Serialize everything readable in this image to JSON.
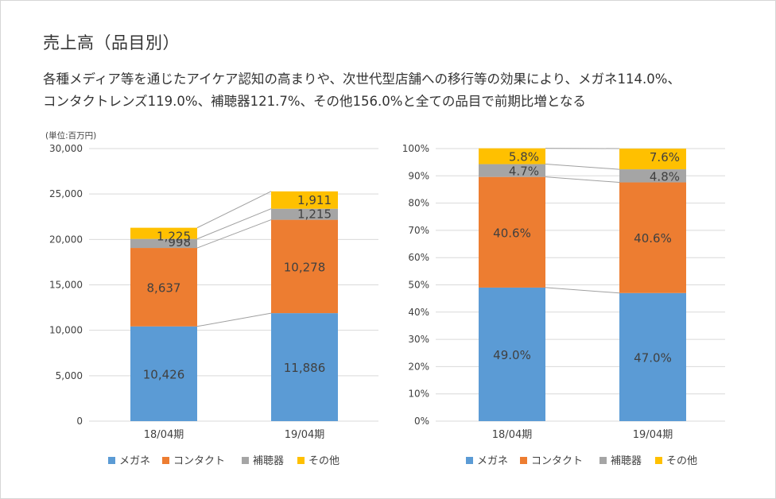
{
  "header": {
    "title": "売上高（品目別）",
    "description_line1": "各種メディア等を通じたアイケア認知の高まりや、次世代型店舗への移行等の効果により、メガネ114.0%、",
    "description_line2": "コンタクトレンズ119.0%、補聴器121.7%、その他156.0%と全ての品目で前期比増となる"
  },
  "colors": {
    "メガネ": "#5B9BD5",
    "コンタクト": "#ED7D31",
    "補聴器": "#A5A5A5",
    "その他": "#FFC000",
    "grid": "#d9d9d9",
    "connector": "#a0a0a0"
  },
  "chart_data": [
    {
      "type": "bar",
      "stacked": true,
      "title": "",
      "unit_label": "(単位:百万円)",
      "xlabel": "",
      "ylabel": "",
      "categories": [
        "18/04期",
        "19/04期"
      ],
      "ylim": [
        0,
        30000
      ],
      "yticks": [
        0,
        5000,
        10000,
        15000,
        20000,
        25000,
        30000
      ],
      "ytick_labels": [
        "0",
        "5,000",
        "10,000",
        "15,000",
        "20,000",
        "25,000",
        "30,000"
      ],
      "grid": true,
      "legend_position": "bottom",
      "series": [
        {
          "name": "メガネ",
          "values": [
            10426,
            11886
          ],
          "labels": [
            "10,426",
            "11,886"
          ]
        },
        {
          "name": "コンタクト",
          "values": [
            8637,
            10278
          ],
          "labels": [
            "8,637",
            "10,278"
          ]
        },
        {
          "name": "補聴器",
          "values": [
            998,
            1215
          ],
          "labels": [
            "998",
            "1,215"
          ]
        },
        {
          "name": "その他",
          "values": [
            1225,
            1911
          ],
          "labels": [
            "1,225",
            "1,911"
          ]
        }
      ]
    },
    {
      "type": "bar",
      "stacked": true,
      "title": "",
      "xlabel": "",
      "ylabel": "",
      "categories": [
        "18/04期",
        "19/04期"
      ],
      "ylim": [
        0,
        100
      ],
      "yticks": [
        0,
        10,
        20,
        30,
        40,
        50,
        60,
        70,
        80,
        90,
        100
      ],
      "ytick_labels": [
        "0%",
        "10%",
        "20%",
        "30%",
        "40%",
        "50%",
        "60%",
        "70%",
        "80%",
        "90%",
        "100%"
      ],
      "grid": true,
      "legend_position": "bottom",
      "series": [
        {
          "name": "メガネ",
          "values": [
            49.0,
            47.0
          ],
          "labels": [
            "49.0%",
            "47.0%"
          ]
        },
        {
          "name": "コンタクト",
          "values": [
            40.6,
            40.6
          ],
          "labels": [
            "40.6%",
            "40.6%"
          ]
        },
        {
          "name": "補聴器",
          "values": [
            4.7,
            4.8
          ],
          "labels": [
            "4.7%",
            "4.8%"
          ]
        },
        {
          "name": "その他",
          "values": [
            5.8,
            7.6
          ],
          "labels": [
            "5.8%",
            "7.6%"
          ]
        }
      ]
    }
  ]
}
